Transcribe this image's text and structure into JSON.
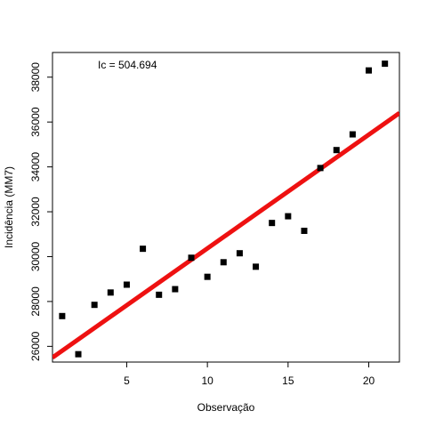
{
  "chart_data": {
    "type": "scatter",
    "title": "",
    "xlabel": "Observação",
    "ylabel": "Incidência (MM7)",
    "annotation": "Ic = 504.694",
    "xlim": [
      0.4,
      21.9
    ],
    "ylim": [
      25300,
      39100
    ],
    "x_ticks": [
      5,
      10,
      15,
      20
    ],
    "x_tick_labels": [
      "5",
      "10",
      "15",
      "20"
    ],
    "y_ticks": [
      26000,
      28000,
      30000,
      32000,
      34000,
      36000,
      38000
    ],
    "y_tick_labels": [
      "26000",
      "28000",
      "30000",
      "32000",
      "34000",
      "36000",
      "38000"
    ],
    "grid": false,
    "colors": {
      "points": "#000000",
      "fit_line": "#ee1111"
    },
    "series": [
      {
        "x": [
          1,
          2,
          3,
          4,
          5,
          6,
          7,
          8,
          9,
          10,
          11,
          12,
          13,
          14,
          15,
          16,
          17,
          18,
          19,
          20,
          21
        ],
        "y": [
          27350,
          25650,
          27850,
          28400,
          28750,
          30350,
          28300,
          28550,
          29950,
          29100,
          29750,
          30150,
          29550,
          31500,
          31800,
          31150,
          33950,
          34750,
          35450,
          38300,
          38600
        ]
      }
    ],
    "fit_line": {
      "x": [
        0.4,
        21.9
      ],
      "y": [
        25500,
        36400
      ]
    }
  }
}
